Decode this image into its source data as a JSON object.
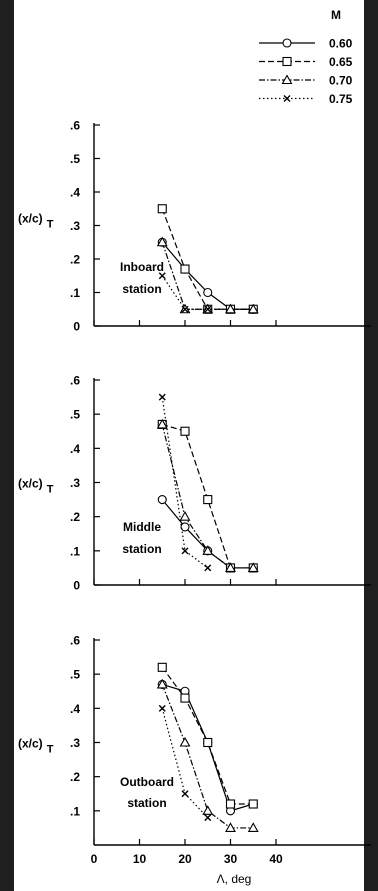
{
  "legend": {
    "title": "M",
    "items": [
      {
        "label": "0.60",
        "marker": "circle",
        "dash": "solid"
      },
      {
        "label": "0.65",
        "marker": "square",
        "dash": "dashed"
      },
      {
        "label": "0.70",
        "marker": "triangle",
        "dash": "dashdot"
      },
      {
        "label": "0.75",
        "marker": "x",
        "dash": "dotted"
      }
    ]
  },
  "chart_data": [
    {
      "type": "line",
      "ylabel": "(x/c)",
      "ylabel_sub": "T",
      "xlabel": "",
      "annotation": [
        "Inboard",
        "station"
      ],
      "xlim": [
        0,
        40
      ],
      "ylim": [
        0,
        0.6
      ],
      "yticks": [
        0,
        0.1,
        0.2,
        0.3,
        0.4,
        0.5,
        0.6
      ],
      "ytick_labels": [
        "0",
        ".1",
        ".2",
        ".3",
        ".4",
        ".5",
        ".6"
      ],
      "xticks": [
        0,
        10,
        20,
        30,
        40
      ],
      "xtick_labels": [],
      "series": [
        {
          "name": "0.60",
          "x": [
            15,
            20,
            25,
            30,
            35
          ],
          "y": [
            0.25,
            0.17,
            0.1,
            0.05,
            0.05
          ]
        },
        {
          "name": "0.65",
          "x": [
            15,
            20,
            25,
            30,
            35
          ],
          "y": [
            0.35,
            0.17,
            0.05,
            0.05,
            0.05
          ]
        },
        {
          "name": "0.70",
          "x": [
            15,
            20,
            25,
            30,
            35
          ],
          "y": [
            0.25,
            0.05,
            0.05,
            0.05,
            0.05
          ]
        },
        {
          "name": "0.75",
          "x": [
            15,
            20,
            25
          ],
          "y": [
            0.15,
            0.05,
            0.05
          ]
        }
      ]
    },
    {
      "type": "line",
      "ylabel": "(x/c)",
      "ylabel_sub": "T",
      "xlabel": "",
      "annotation": [
        "Middle",
        "station"
      ],
      "xlim": [
        0,
        40
      ],
      "ylim": [
        0,
        0.6
      ],
      "yticks": [
        0,
        0.1,
        0.2,
        0.3,
        0.4,
        0.5,
        0.6
      ],
      "ytick_labels": [
        "0",
        ".1",
        ".2",
        ".3",
        ".4",
        ".5",
        ".6"
      ],
      "xticks": [
        0,
        10,
        20,
        30,
        40
      ],
      "xtick_labels": [],
      "series": [
        {
          "name": "0.60",
          "x": [
            15,
            20,
            25,
            30,
            35
          ],
          "y": [
            0.25,
            0.17,
            0.1,
            0.05,
            0.05
          ]
        },
        {
          "name": "0.65",
          "x": [
            15,
            20,
            25,
            30,
            35
          ],
          "y": [
            0.47,
            0.45,
            0.25,
            0.05,
            0.05
          ]
        },
        {
          "name": "0.70",
          "x": [
            15,
            20,
            25,
            30,
            35
          ],
          "y": [
            0.47,
            0.2,
            0.1,
            0.05,
            0.05
          ]
        },
        {
          "name": "0.75",
          "x": [
            15,
            20,
            25
          ],
          "y": [
            0.55,
            0.1,
            0.05
          ]
        }
      ]
    },
    {
      "type": "line",
      "ylabel": "(x/c)",
      "ylabel_sub": "T",
      "xlabel": "Λ, deg",
      "annotation": [
        "Outboard",
        "station"
      ],
      "xlim": [
        0,
        40
      ],
      "ylim": [
        0,
        0.6
      ],
      "yticks": [
        0.1,
        0.2,
        0.3,
        0.4,
        0.5,
        0.6
      ],
      "ytick_labels": [
        ".1",
        ".2",
        ".3",
        ".4",
        ".5",
        ".6"
      ],
      "xticks": [
        0,
        10,
        20,
        30,
        40
      ],
      "xtick_labels": [
        "0",
        "10",
        "20",
        "30",
        "40"
      ],
      "series": [
        {
          "name": "0.60",
          "x": [
            15,
            20,
            25,
            30,
            35
          ],
          "y": [
            0.47,
            0.45,
            0.3,
            0.1,
            0.12
          ]
        },
        {
          "name": "0.65",
          "x": [
            15,
            20,
            25,
            30,
            35
          ],
          "y": [
            0.52,
            0.43,
            0.3,
            0.12,
            0.12
          ]
        },
        {
          "name": "0.70",
          "x": [
            15,
            20,
            25,
            30,
            35
          ],
          "y": [
            0.47,
            0.3,
            0.1,
            0.05,
            0.05
          ]
        },
        {
          "name": "0.75",
          "x": [
            15,
            20,
            25
          ],
          "y": [
            0.4,
            0.15,
            0.08
          ]
        }
      ]
    }
  ]
}
